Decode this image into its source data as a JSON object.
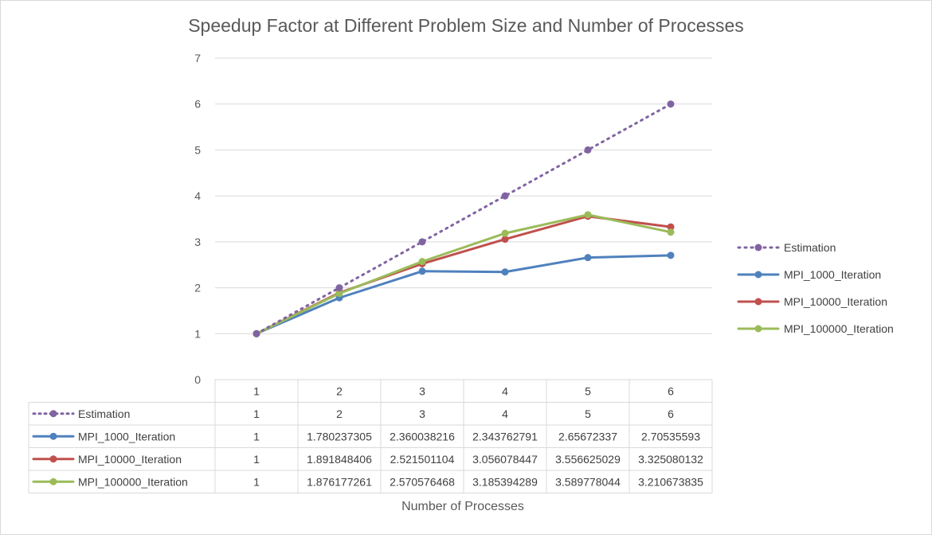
{
  "chart_data": {
    "type": "line",
    "title": "Speedup Factor at Different Problem Size and Number of Processes",
    "xlabel": "Number of Processes",
    "ylabel": "",
    "ylim": [
      0,
      7
    ],
    "yticks": [
      "0",
      "1",
      "2",
      "3",
      "4",
      "5",
      "6",
      "7"
    ],
    "categories": [
      "1",
      "2",
      "3",
      "4",
      "5",
      "6"
    ],
    "grid": true,
    "legend_position": "right",
    "series": [
      {
        "name": "Estimation",
        "color": "#8064a2",
        "style": "dotted",
        "values": [
          1,
          2,
          3,
          4,
          5,
          6
        ],
        "table_values": [
          "1",
          "2",
          "3",
          "4",
          "5",
          "6"
        ]
      },
      {
        "name": "MPI_1000_Iteration",
        "color": "#4f81bd",
        "style": "solid",
        "values": [
          1,
          1.780237305,
          2.360038216,
          2.343762791,
          2.65672337,
          2.70535593
        ],
        "table_values": [
          "1",
          "1.780237305",
          "2.360038216",
          "2.343762791",
          "2.65672337",
          "2.70535593"
        ]
      },
      {
        "name": "MPI_10000_Iteration",
        "color": "#c0504d",
        "style": "solid",
        "values": [
          1,
          1.891848406,
          2.521501104,
          3.056078447,
          3.556625029,
          3.325080132
        ],
        "table_values": [
          "1",
          "1.891848406",
          "2.521501104",
          "3.056078447",
          "3.556625029",
          "3.325080132"
        ]
      },
      {
        "name": "MPI_100000_Iteration",
        "color": "#9bbb59",
        "style": "solid",
        "values": [
          1,
          1.876177261,
          2.570576468,
          3.185394289,
          3.589778044,
          3.210673835
        ],
        "table_values": [
          "1",
          "1.876177261",
          "2.570576468",
          "3.185394289",
          "3.589778044",
          "3.210673835"
        ]
      }
    ]
  }
}
